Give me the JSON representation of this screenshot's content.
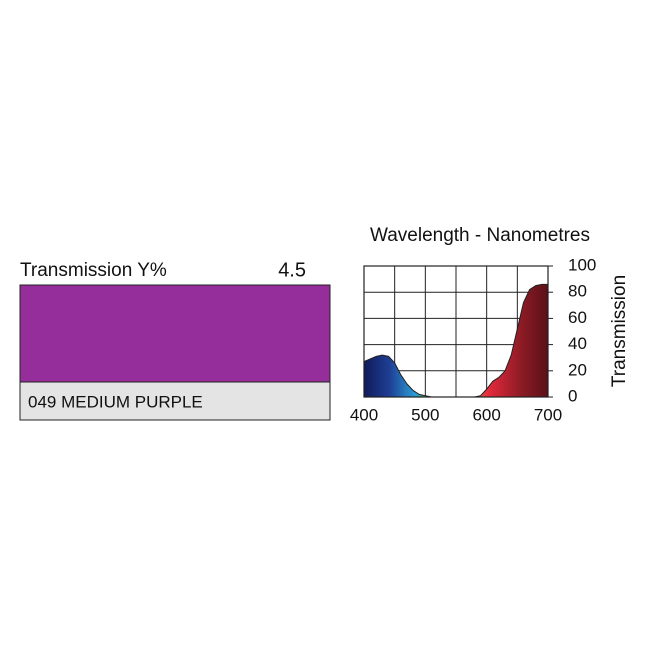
{
  "swatch": {
    "label": "Transmission Y%",
    "value": "4.5",
    "name": "049 MEDIUM PURPLE",
    "color": "#952e9a"
  },
  "chart_data": {
    "type": "area",
    "title": "Wavelength - Nanometres",
    "y_label": "Transmission",
    "x": [
      400,
      410,
      420,
      430,
      440,
      450,
      460,
      470,
      480,
      490,
      500,
      510,
      520,
      530,
      540,
      550,
      560,
      570,
      580,
      590,
      600,
      610,
      620,
      630,
      640,
      650,
      660,
      670,
      680,
      690,
      700
    ],
    "values": [
      27,
      29,
      31,
      32,
      31,
      26,
      17,
      10,
      5,
      2,
      1,
      0,
      0,
      0,
      0,
      0,
      0,
      0,
      0,
      1,
      6,
      12,
      15,
      20,
      32,
      52,
      72,
      82,
      85,
      86,
      86
    ],
    "xlim": [
      400,
      700
    ],
    "xticks": [
      400,
      500,
      600,
      700
    ],
    "x_minor_ticks": [
      450,
      550,
      650
    ],
    "ylim": [
      0,
      100
    ],
    "yticks": [
      0,
      20,
      40,
      60,
      80,
      100
    ],
    "grid": true,
    "y_axis_side": "right"
  }
}
